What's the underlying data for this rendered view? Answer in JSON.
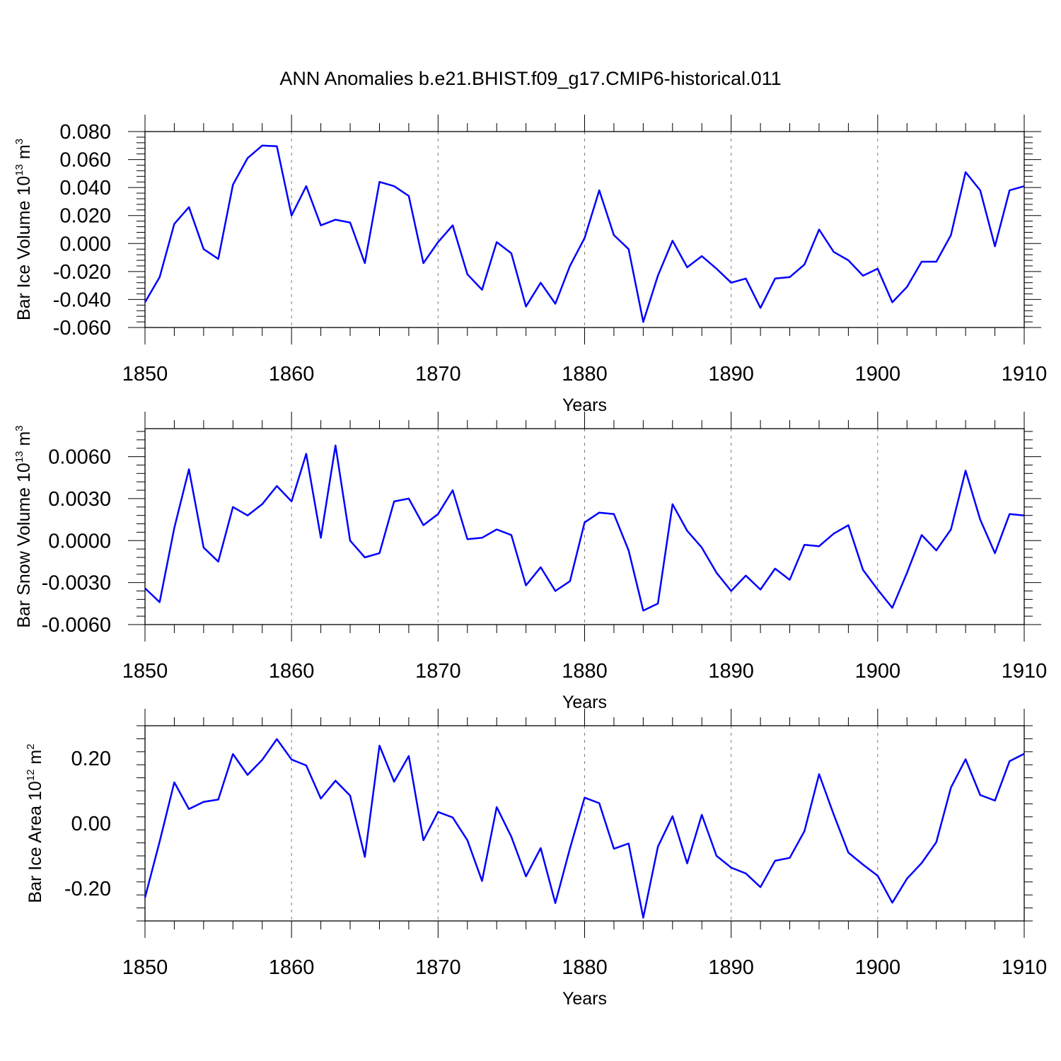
{
  "figure": {
    "title": "ANN Anomalies b.e21.BHIST.f09_g17.CMIP6-historical.011",
    "line_color": "#0000ff",
    "grid_color": "#777777"
  },
  "chart_data": [
    {
      "type": "line",
      "ylabel": "Bar Ice Volume",
      "unit_base": "10",
      "unit_exp": "13",
      "unit_name": "m",
      "unit_pow": "3",
      "xlabel": "Years",
      "xlim": [
        1850,
        1910
      ],
      "ylim": [
        -0.06,
        0.08
      ],
      "xticks": [
        1850,
        1860,
        1870,
        1880,
        1890,
        1900,
        1910
      ],
      "xtick_labels": [
        "1850",
        "1860",
        "1870",
        "1880",
        "1890",
        "1900",
        "1910"
      ],
      "yticks": [
        0.08,
        0.06,
        0.04,
        0.02,
        0.0,
        -0.02,
        -0.04,
        -0.06
      ],
      "ytick_labels": [
        "0.080",
        "0.060",
        "0.040",
        "0.020",
        "0.000",
        "-0.020",
        "-0.040",
        "-0.060"
      ],
      "grid": "dashed vertical at decades",
      "series": [
        {
          "x": [
            1850,
            1851,
            1852,
            1853,
            1854,
            1855,
            1856,
            1857,
            1858,
            1859,
            1860,
            1861,
            1862,
            1863,
            1864,
            1865,
            1866,
            1867,
            1868,
            1869,
            1870,
            1871,
            1872,
            1873,
            1874,
            1875,
            1876,
            1877,
            1878,
            1879,
            1880,
            1881,
            1882,
            1883,
            1884,
            1885,
            1886,
            1887,
            1888,
            1889,
            1890,
            1891,
            1892,
            1893,
            1894,
            1895,
            1896,
            1897,
            1898,
            1899,
            1900,
            1901,
            1902,
            1903,
            1904,
            1905,
            1906,
            1907,
            1908,
            1909,
            1910
          ],
          "values": [
            -0.042,
            -0.024,
            0.014,
            0.026,
            -0.004,
            -0.011,
            0.042,
            0.061,
            0.07,
            0.0695,
            0.02,
            0.041,
            0.013,
            0.017,
            0.015,
            -0.014,
            0.044,
            0.041,
            0.034,
            -0.014,
            0.001,
            0.013,
            -0.022,
            -0.033,
            0.001,
            -0.007,
            -0.045,
            -0.028,
            -0.043,
            -0.016,
            0.004,
            0.038,
            0.006,
            -0.004,
            -0.056,
            -0.023,
            0.002,
            -0.017,
            -0.009,
            -0.018,
            -0.028,
            -0.025,
            -0.046,
            -0.025,
            -0.024,
            -0.015,
            0.01,
            -0.006,
            -0.012,
            -0.023,
            -0.018,
            -0.042,
            -0.031,
            -0.013,
            -0.013,
            0.006,
            0.051,
            0.038,
            -0.002,
            0.038,
            0.041
          ]
        }
      ]
    },
    {
      "type": "line",
      "ylabel": "Bar Snow Volume",
      "unit_base": "10",
      "unit_exp": "13",
      "unit_name": "m",
      "unit_pow": "3",
      "xlabel": "Years",
      "xlim": [
        1850,
        1910
      ],
      "ylim": [
        -0.006,
        0.008
      ],
      "xticks": [
        1850,
        1860,
        1870,
        1880,
        1890,
        1900,
        1910
      ],
      "xtick_labels": [
        "1850",
        "1860",
        "1870",
        "1880",
        "1890",
        "1900",
        "1910"
      ],
      "yticks": [
        0.006,
        0.003,
        0.0,
        -0.003,
        -0.006
      ],
      "ytick_labels": [
        "0.0060",
        "0.0030",
        "0.0000",
        "-0.0030",
        "-0.0060"
      ],
      "grid": "dashed vertical at decades",
      "series": [
        {
          "x": [
            1850,
            1851,
            1852,
            1853,
            1854,
            1855,
            1856,
            1857,
            1858,
            1859,
            1860,
            1861,
            1862,
            1863,
            1864,
            1865,
            1866,
            1867,
            1868,
            1869,
            1870,
            1871,
            1872,
            1873,
            1874,
            1875,
            1876,
            1877,
            1878,
            1879,
            1880,
            1881,
            1882,
            1883,
            1884,
            1885,
            1886,
            1887,
            1888,
            1889,
            1890,
            1891,
            1892,
            1893,
            1894,
            1895,
            1896,
            1897,
            1898,
            1899,
            1900,
            1901,
            1902,
            1903,
            1904,
            1905,
            1906,
            1907,
            1908,
            1909,
            1910
          ],
          "values": [
            -0.0034,
            -0.0044,
            0.0009,
            0.0051,
            -0.0005,
            -0.0015,
            0.0024,
            0.0018,
            0.0026,
            0.0039,
            0.0028,
            0.0062,
            0.0002,
            0.0068,
            0.0,
            -0.0012,
            -0.0009,
            0.0028,
            0.003,
            0.0011,
            0.0019,
            0.0036,
            0.0001,
            0.0002,
            0.0008,
            0.0004,
            -0.0032,
            -0.0019,
            -0.0036,
            -0.0029,
            0.0013,
            0.002,
            0.0019,
            -0.0007,
            -0.005,
            -0.0045,
            0.0026,
            0.0007,
            -0.0005,
            -0.0023,
            -0.0036,
            -0.0025,
            -0.0035,
            -0.002,
            -0.0028,
            -0.0003,
            -0.0004,
            0.0005,
            0.0011,
            -0.0021,
            -0.0035,
            -0.0048,
            -0.0023,
            0.0004,
            -0.0007,
            0.0008,
            0.005,
            0.0015,
            -0.0009,
            0.0019,
            0.0018
          ]
        }
      ]
    },
    {
      "type": "line",
      "ylabel": "Bar Ice Area",
      "unit_base": "10",
      "unit_exp": "12",
      "unit_name": "m",
      "unit_pow": "2",
      "xlabel": "Years",
      "xlim": [
        1850,
        1910
      ],
      "ylim": [
        -0.3,
        0.3
      ],
      "xticks": [
        1850,
        1860,
        1870,
        1880,
        1890,
        1900,
        1910
      ],
      "xtick_labels": [
        "1850",
        "1860",
        "1870",
        "1880",
        "1890",
        "1900",
        "1910"
      ],
      "yticks": [
        0.2,
        0.0,
        -0.2
      ],
      "ytick_labels": [
        "0.20",
        "0.00",
        "-0.20"
      ],
      "grid": "dashed vertical at decades",
      "series": [
        {
          "x": [
            1850,
            1851,
            1852,
            1853,
            1854,
            1855,
            1856,
            1857,
            1858,
            1859,
            1860,
            1861,
            1862,
            1863,
            1864,
            1865,
            1866,
            1867,
            1868,
            1869,
            1870,
            1871,
            1872,
            1873,
            1874,
            1875,
            1876,
            1877,
            1878,
            1879,
            1880,
            1881,
            1882,
            1883,
            1884,
            1885,
            1886,
            1887,
            1888,
            1889,
            1890,
            1891,
            1892,
            1893,
            1894,
            1895,
            1896,
            1897,
            1898,
            1899,
            1900,
            1901,
            1902,
            1903,
            1904,
            1905,
            1906,
            1907,
            1908,
            1909,
            1910
          ],
          "values": [
            -0.228,
            -0.056,
            0.126,
            0.044,
            0.066,
            0.073,
            0.213,
            0.149,
            0.195,
            0.259,
            0.196,
            0.178,
            0.076,
            0.131,
            0.085,
            -0.103,
            0.239,
            0.128,
            0.207,
            -0.052,
            0.035,
            0.018,
            -0.052,
            -0.177,
            0.05,
            -0.041,
            -0.163,
            -0.076,
            -0.245,
            -0.077,
            0.079,
            0.062,
            -0.078,
            -0.062,
            -0.29,
            -0.072,
            0.022,
            -0.123,
            0.026,
            -0.1,
            -0.136,
            -0.154,
            -0.196,
            -0.115,
            -0.106,
            -0.024,
            0.151,
            0.027,
            -0.09,
            -0.127,
            -0.161,
            -0.244,
            -0.17,
            -0.122,
            -0.058,
            0.11,
            0.197,
            0.087,
            0.07,
            0.191,
            0.214
          ]
        }
      ]
    }
  ]
}
